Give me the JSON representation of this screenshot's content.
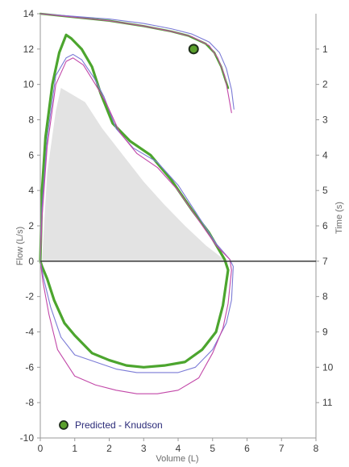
{
  "chart_data": {
    "type": "line",
    "xlabel": "Volume (L)",
    "ylabel": "Flow (L/s)",
    "y2label": "Time (s)",
    "xlim": [
      0,
      8
    ],
    "ylim": [
      -10,
      14
    ],
    "y2lim": [
      0,
      11
    ],
    "x_ticks": [
      0,
      1,
      2,
      3,
      4,
      5,
      6,
      7,
      8
    ],
    "y_ticks": [
      -10,
      -8,
      -6,
      -4,
      -2,
      0,
      2,
      4,
      6,
      8,
      10,
      12,
      14
    ],
    "y2_ticks": [
      1,
      2,
      3,
      4,
      5,
      6,
      7,
      8,
      9,
      10,
      11
    ],
    "grid": false,
    "legend_position": "bottom-left",
    "predicted_point": {
      "label": "Predicted - Knudson",
      "x": 4.45,
      "y": 12.0,
      "color": "#5aa02c"
    },
    "predicted_area": {
      "color": "#e3e3e3",
      "points": [
        [
          0.05,
          0
        ],
        [
          0.2,
          5
        ],
        [
          0.45,
          8.5
        ],
        [
          0.6,
          9.8
        ],
        [
          1.3,
          9.0
        ],
        [
          1.8,
          7.5
        ],
        [
          2.4,
          6.0
        ],
        [
          3.0,
          4.5
        ],
        [
          3.6,
          3.2
        ],
        [
          4.2,
          2.0
        ],
        [
          4.8,
          0.9
        ],
        [
          5.4,
          0
        ]
      ]
    },
    "series": [
      {
        "color": "#4ca52e",
        "width": 3.2,
        "points": [
          [
            0,
            0
          ],
          [
            0.05,
            4
          ],
          [
            0.15,
            7
          ],
          [
            0.35,
            10
          ],
          [
            0.55,
            11.8
          ],
          [
            0.75,
            12.8
          ],
          [
            0.9,
            12.6
          ],
          [
            1.2,
            12.0
          ],
          [
            1.5,
            11.0
          ],
          [
            1.75,
            9.5
          ],
          [
            2.1,
            7.8
          ],
          [
            2.6,
            6.8
          ],
          [
            3.2,
            6.0
          ],
          [
            3.8,
            4.6
          ],
          [
            4.4,
            2.9
          ],
          [
            4.9,
            1.6
          ],
          [
            5.35,
            0.1
          ],
          [
            5.45,
            -0.5
          ],
          [
            5.3,
            -2.5
          ],
          [
            5.1,
            -4.0
          ],
          [
            4.7,
            -5.0
          ],
          [
            4.2,
            -5.7
          ],
          [
            3.6,
            -5.9
          ],
          [
            3.0,
            -6.0
          ],
          [
            2.5,
            -5.9
          ],
          [
            2.0,
            -5.6
          ],
          [
            1.5,
            -5.2
          ],
          [
            1.0,
            -4.2
          ],
          [
            0.7,
            -3.5
          ],
          [
            0.4,
            -2.2
          ],
          [
            0.2,
            -1.0
          ],
          [
            0.05,
            -0.3
          ],
          [
            0,
            0
          ]
        ]
      },
      {
        "color": "#7b7bd6",
        "width": 1.1,
        "points": [
          [
            0,
            0
          ],
          [
            0.05,
            3
          ],
          [
            0.2,
            7
          ],
          [
            0.45,
            10.5
          ],
          [
            0.75,
            11.5
          ],
          [
            0.95,
            11.7
          ],
          [
            1.2,
            11.4
          ],
          [
            1.55,
            10.4
          ],
          [
            1.85,
            9.3
          ],
          [
            2.2,
            7.5
          ],
          [
            2.7,
            6.4
          ],
          [
            3.4,
            5.6
          ],
          [
            4.0,
            4.3
          ],
          [
            4.6,
            2.5
          ],
          [
            5.1,
            1.0
          ],
          [
            5.5,
            0.1
          ],
          [
            5.6,
            -0.3
          ],
          [
            5.55,
            -2.2
          ],
          [
            5.4,
            -3.5
          ],
          [
            5.0,
            -5.0
          ],
          [
            4.5,
            -6.0
          ],
          [
            4.0,
            -6.3
          ],
          [
            3.4,
            -6.3
          ],
          [
            2.8,
            -6.3
          ],
          [
            2.2,
            -6.1
          ],
          [
            1.6,
            -5.7
          ],
          [
            1.0,
            -5.3
          ],
          [
            0.6,
            -4.3
          ],
          [
            0.3,
            -2.6
          ],
          [
            0.1,
            -1.0
          ],
          [
            0,
            0
          ]
        ]
      },
      {
        "color": "#c247a8",
        "width": 1.1,
        "points": [
          [
            0,
            0
          ],
          [
            0.05,
            2.5
          ],
          [
            0.2,
            6.5
          ],
          [
            0.45,
            10
          ],
          [
            0.75,
            11.3
          ],
          [
            0.95,
            11.5
          ],
          [
            1.25,
            11.1
          ],
          [
            1.6,
            10.0
          ],
          [
            1.9,
            9.0
          ],
          [
            2.3,
            7.3
          ],
          [
            2.8,
            6.1
          ],
          [
            3.4,
            5.3
          ],
          [
            4.0,
            4.0
          ],
          [
            4.6,
            2.3
          ],
          [
            5.1,
            0.9
          ],
          [
            5.5,
            0.1
          ],
          [
            5.55,
            -0.5
          ],
          [
            5.45,
            -2.4
          ],
          [
            5.3,
            -3.8
          ],
          [
            5.0,
            -5.2
          ],
          [
            4.6,
            -6.6
          ],
          [
            4.0,
            -7.3
          ],
          [
            3.4,
            -7.5
          ],
          [
            2.8,
            -7.5
          ],
          [
            2.2,
            -7.3
          ],
          [
            1.6,
            -7.0
          ],
          [
            1.0,
            -6.5
          ],
          [
            0.5,
            -5.0
          ],
          [
            0.25,
            -3.0
          ],
          [
            0.08,
            -1.2
          ],
          [
            0,
            0
          ]
        ]
      },
      {
        "color": "#4ca52e",
        "width": 2.5,
        "points": [
          [
            0,
            14
          ],
          [
            1,
            13.8
          ],
          [
            2,
            13.6
          ],
          [
            3,
            13.3
          ],
          [
            3.8,
            13.0
          ],
          [
            4.3,
            12.75
          ],
          [
            4.8,
            12.3
          ],
          [
            5.05,
            11.8
          ],
          [
            5.25,
            11.0
          ],
          [
            5.38,
            10.2
          ],
          [
            5.45,
            9.8
          ]
        ]
      },
      {
        "color": "#7b7bd6",
        "width": 1.1,
        "points": [
          [
            0,
            14
          ],
          [
            1,
            13.85
          ],
          [
            2,
            13.7
          ],
          [
            3,
            13.45
          ],
          [
            3.8,
            13.15
          ],
          [
            4.4,
            12.85
          ],
          [
            4.9,
            12.4
          ],
          [
            5.2,
            11.8
          ],
          [
            5.4,
            10.9
          ],
          [
            5.55,
            9.7
          ],
          [
            5.62,
            8.6
          ]
        ]
      },
      {
        "color": "#c247a8",
        "width": 1.1,
        "points": [
          [
            0,
            14
          ],
          [
            1,
            13.8
          ],
          [
            2,
            13.6
          ],
          [
            3,
            13.3
          ],
          [
            3.8,
            13.0
          ],
          [
            4.4,
            12.7
          ],
          [
            4.9,
            12.2
          ],
          [
            5.15,
            11.5
          ],
          [
            5.35,
            10.5
          ],
          [
            5.45,
            9.5
          ],
          [
            5.55,
            8.4
          ]
        ]
      }
    ]
  }
}
